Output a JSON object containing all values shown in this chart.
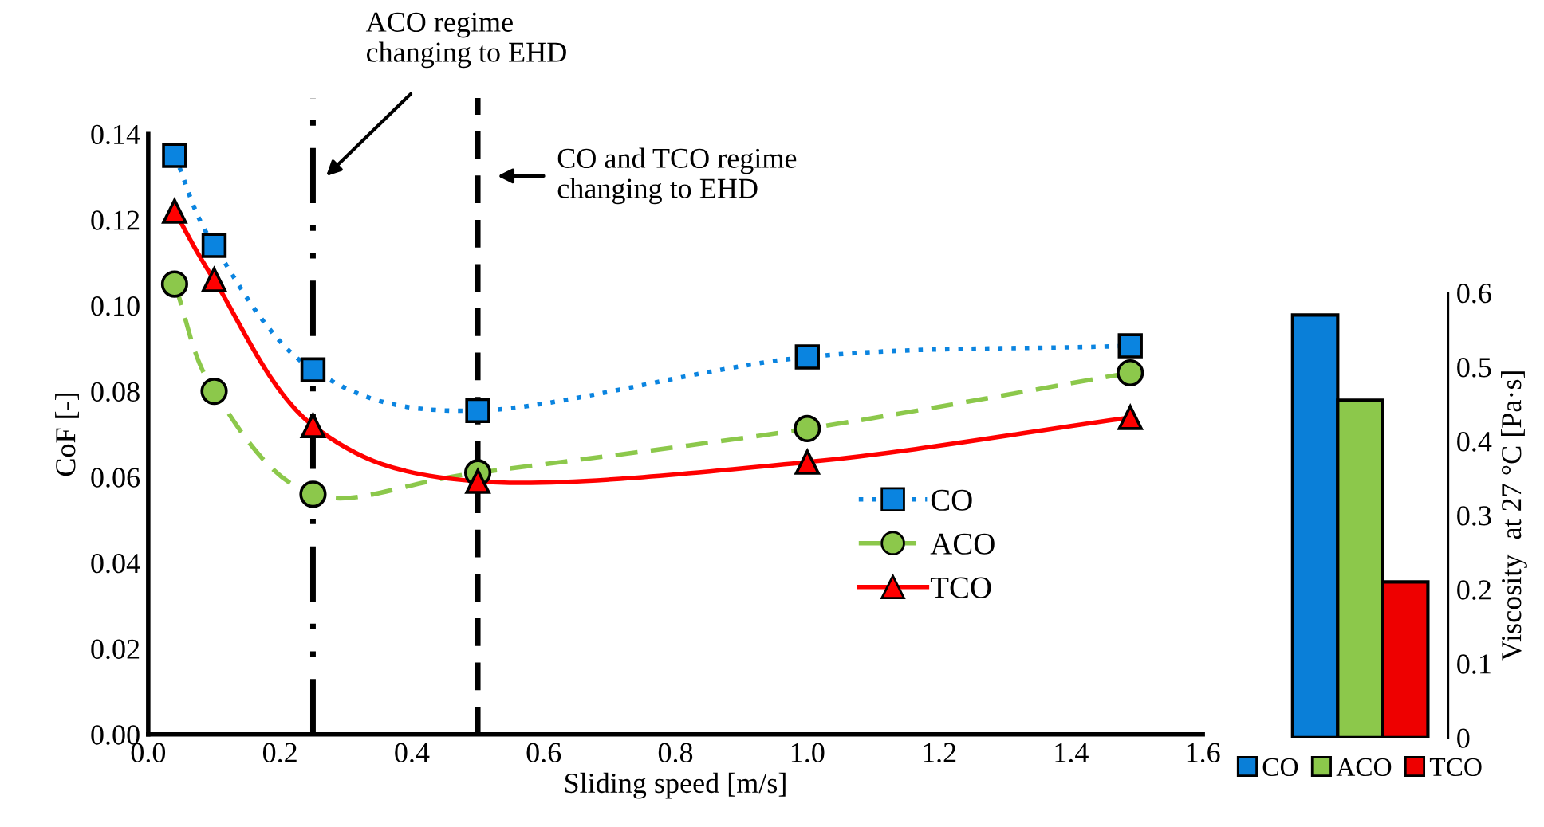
{
  "chart_data": [
    {
      "type": "line",
      "xlabel": "Sliding speed [m/s]",
      "ylabel": "CoF [-]",
      "xlim": [
        0,
        1.6
      ],
      "xticks": [
        {
          "value": 0,
          "label": "0.0"
        },
        {
          "value": 0.2,
          "label": "0.2"
        },
        {
          "value": 0.4,
          "label": "0.4"
        },
        {
          "value": 0.6,
          "label": "0.6"
        },
        {
          "value": 0.8,
          "label": "0.8"
        },
        {
          "value": 1.0,
          "label": "1.0"
        },
        {
          "value": 1.2,
          "label": "1.2"
        },
        {
          "value": 1.4,
          "label": "1.4"
        },
        {
          "value": 1.6,
          "label": "1.6"
        }
      ],
      "ylim": [
        0,
        0.14
      ],
      "yticks": [
        {
          "value": 0,
          "label": "0.00"
        },
        {
          "value": 0.02,
          "label": "0.02"
        },
        {
          "value": 0.04,
          "label": "0.04"
        },
        {
          "value": 0.06,
          "label": "0.06"
        },
        {
          "value": 0.08,
          "label": "0.08"
        },
        {
          "value": 0.1,
          "label": "0.10"
        },
        {
          "value": 0.12,
          "label": "0.12"
        },
        {
          "value": 0.14,
          "label": "0.14"
        }
      ],
      "x": [
        0.04,
        0.1,
        0.25,
        0.5,
        1.0,
        1.49
      ],
      "series": [
        {
          "name": "CO",
          "color": "#0a84e0",
          "marker": "square",
          "line_style": "dotted",
          "values": [
            0.135,
            0.114,
            0.085,
            0.0755,
            0.088,
            0.0906
          ]
        },
        {
          "name": "ACO",
          "color": "#8cc84b",
          "marker": "circle",
          "line_style": "dashed",
          "values": [
            0.105,
            0.08,
            0.056,
            0.061,
            0.0713,
            0.0843
          ]
        },
        {
          "name": "TCO",
          "color": "#ff0000",
          "marker": "triangle",
          "line_style": "solid",
          "values": [
            0.122,
            0.106,
            0.072,
            0.059,
            0.0635,
            0.0739
          ]
        }
      ],
      "ref_lines": [
        {
          "axis": "x",
          "value": 0.25,
          "label": "ACO regime\nchanging to EHD",
          "color": "#000000",
          "line_style": "dashdotdot"
        },
        {
          "axis": "x",
          "value": 0.5,
          "label": "CO and TCO regime\nchanging to EHD",
          "color": "#000000",
          "line_style": "dashed"
        }
      ],
      "grid": false,
      "legend": "bottom right"
    },
    {
      "type": "bar",
      "ylabel": "Viscosity  at 27 °C [Pa·s]",
      "categories": [
        null
      ],
      "ylim": [
        0,
        0.6
      ],
      "yticks": [
        0,
        0.1,
        0.2,
        0.3,
        0.4,
        0.5,
        0.6
      ],
      "series": [
        {
          "name": "CO",
          "color": "#0a7fd8",
          "values": [
            0.57
          ]
        },
        {
          "name": "ACO",
          "color": "#8cc84b",
          "values": [
            0.455
          ]
        },
        {
          "name": "TCO",
          "color": "#ee0000",
          "values": [
            0.21
          ]
        }
      ],
      "grid": false,
      "legend": "bottom"
    }
  ]
}
